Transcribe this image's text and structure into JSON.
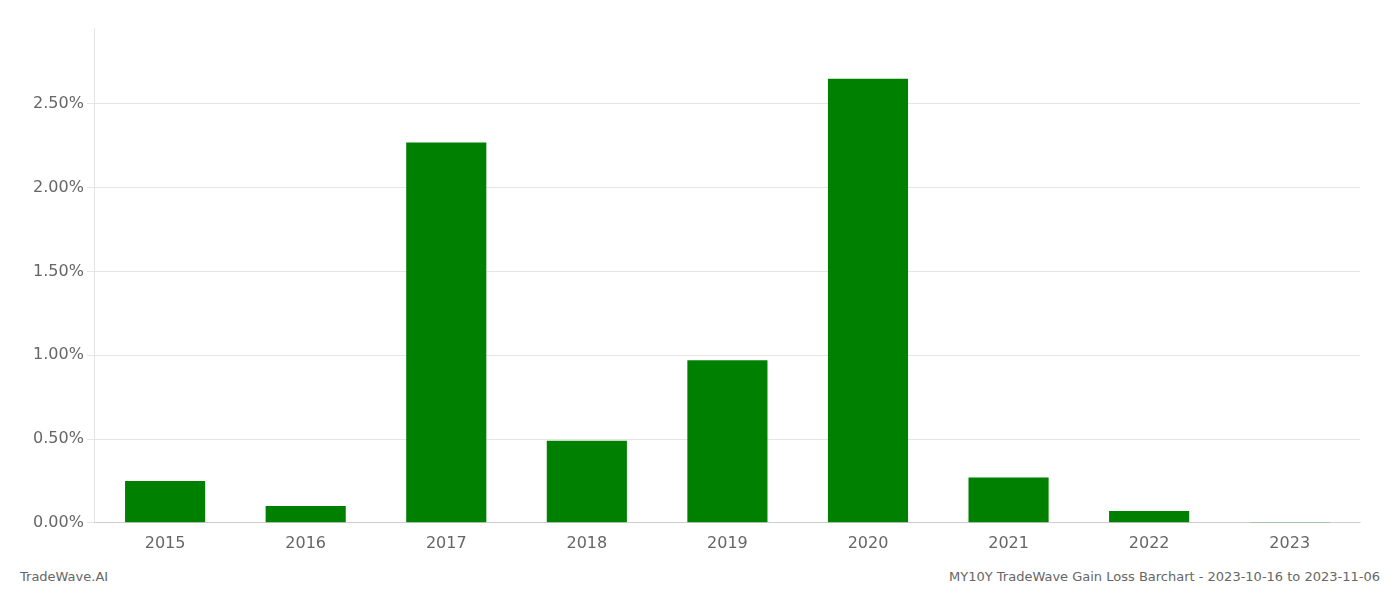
{
  "chart_data": {
    "type": "bar",
    "categories": [
      "2015",
      "2016",
      "2017",
      "2018",
      "2019",
      "2020",
      "2021",
      "2022",
      "2023"
    ],
    "values": [
      0.0025,
      0.001,
      0.0227,
      0.0049,
      0.0097,
      0.0265,
      0.0027,
      0.0007,
      5e-05
    ],
    "color": "#008000",
    "ylim": [
      0,
      0.0295
    ],
    "yticks": [
      {
        "value": 0.0,
        "label": "0.00%"
      },
      {
        "value": 0.005,
        "label": "0.50%"
      },
      {
        "value": 0.01,
        "label": "1.00%"
      },
      {
        "value": 0.015,
        "label": "1.50%"
      },
      {
        "value": 0.02,
        "label": "2.00%"
      },
      {
        "value": 0.025,
        "label": "2.50%"
      }
    ],
    "grid": true,
    "annotations": [
      "TradeWave.AI",
      "MY10Y TradeWave Gain Loss Barchart - 2023-10-16 to 2023-11-06"
    ]
  }
}
